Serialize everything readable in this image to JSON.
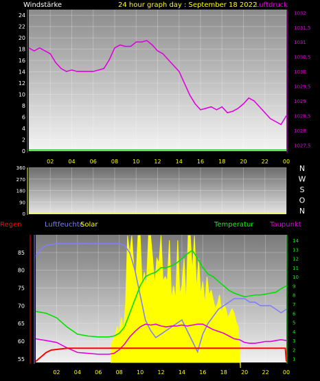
{
  "header": {
    "left_label": "Windstärke",
    "title": "24 hour graph day : September 18 2022",
    "right_label": "Luftdruck"
  },
  "bottom_labels": {
    "regen": "Regen",
    "luftfeuchte": "Luftfeuchte",
    "solar": "Solar",
    "temperatur": "Temperatur",
    "taupunkt": "Taupunkt"
  },
  "compass": [
    "N",
    "W",
    "S",
    "O",
    "N"
  ],
  "colors": {
    "pressure": "#e000e0",
    "wind": "#00c000",
    "humidity": "#7f7fff",
    "solar": "#ffff00",
    "temperature": "#00e000",
    "dewpoint": "#e000e0",
    "rain": "#ff0000",
    "left_axis_text": "#ffffff",
    "temp_axis_text": "#00ff00"
  },
  "chart_data": [
    {
      "type": "line",
      "title": "24 hour graph day : September 18 2022",
      "x_tick_labels": [
        "02",
        "04",
        "06",
        "08",
        "10",
        "12",
        "14",
        "16",
        "18",
        "20",
        "22",
        "00"
      ],
      "left_axis": {
        "label": "Windstärke",
        "ticks": [
          "0",
          "2",
          "4",
          "6",
          "8",
          "10",
          "12",
          "14",
          "16",
          "18",
          "20",
          "22",
          "24"
        ],
        "ylim": [
          0,
          25
        ]
      },
      "right_axis": {
        "label": "Luftdruck",
        "ticks": [
          "1027,5",
          "1028",
          "1028,5",
          "1029",
          "1029,5",
          "1030",
          "1030,5",
          "1031",
          "1031,5",
          "1032"
        ],
        "ylim": [
          1027.3,
          1032.1
        ]
      },
      "series": [
        {
          "name": "Luftdruck",
          "axis": "right",
          "x": [
            0,
            0.5,
            1,
            1.5,
            2,
            2.5,
            3,
            3.5,
            4,
            4.5,
            5,
            5.5,
            6,
            6.5,
            7,
            7.5,
            8,
            8.5,
            9,
            9.5,
            10,
            10.5,
            11,
            11.5,
            12,
            12.5,
            13,
            13.5,
            14,
            14.5,
            15,
            15.5,
            16,
            16.5,
            17,
            17.5,
            18,
            18.5,
            19,
            19.5,
            20,
            20.5,
            21,
            21.5,
            22,
            22.5,
            23,
            23.5,
            24
          ],
          "y": [
            1030.8,
            1030.7,
            1030.8,
            1030.7,
            1030.6,
            1030.3,
            1030.1,
            1030.0,
            1030.05,
            1030.0,
            1030.0,
            1030.0,
            1030.0,
            1030.05,
            1030.1,
            1030.4,
            1030.8,
            1030.9,
            1030.85,
            1030.85,
            1031.0,
            1031.0,
            1031.05,
            1030.9,
            1030.7,
            1030.6,
            1030.4,
            1030.2,
            1030.0,
            1029.6,
            1029.2,
            1028.9,
            1028.7,
            1028.75,
            1028.8,
            1028.7,
            1028.8,
            1028.6,
            1028.65,
            1028.75,
            1028.9,
            1029.1,
            1029.0,
            1028.8,
            1028.6,
            1028.4,
            1028.3,
            1028.2,
            1028.5
          ]
        },
        {
          "name": "Windstärke",
          "axis": "left",
          "x": [
            0,
            24
          ],
          "y": [
            0.2,
            0.2
          ]
        }
      ]
    },
    {
      "type": "line",
      "left_axis": {
        "ticks": [
          "0",
          "90",
          "180",
          "270",
          "360"
        ],
        "ylim": [
          0,
          360
        ]
      },
      "right_axis_labels": [
        "N",
        "W",
        "S",
        "O",
        "N"
      ],
      "series": []
    },
    {
      "type": "area",
      "x_tick_labels": [
        "02",
        "04",
        "06",
        "08",
        "10",
        "12",
        "14",
        "16",
        "18",
        "20",
        "22",
        "00"
      ],
      "legend": [
        "Regen",
        "Luftfeuchte",
        "Solar",
        "Temperatur",
        "Taupunkt"
      ],
      "left_axis": {
        "ticks": [
          "55",
          "60",
          "65",
          "70",
          "75",
          "80",
          "85"
        ],
        "ylim": [
          54,
          90
        ]
      },
      "right_axis": {
        "ticks": [
          "1",
          "2",
          "3",
          "4",
          "5",
          "6",
          "7",
          "8",
          "9",
          "10",
          "11",
          "12",
          "13",
          "14"
        ],
        "ylim": [
          0.6,
          14.6
        ]
      },
      "series": [
        {
          "name": "Luftfeuchte",
          "axis": "left",
          "x": [
            0,
            0.5,
            1,
            2,
            3,
            4,
            5,
            6,
            7,
            7.5,
            8,
            8.5,
            9,
            9.5,
            10,
            10.5,
            11,
            11.5,
            12,
            12.5,
            13,
            13.5,
            14,
            14.5,
            15,
            15.5,
            16,
            16.5,
            17,
            17.5,
            18,
            18.5,
            19,
            19.5,
            20,
            20.5,
            21,
            21.5,
            22,
            22.5,
            23,
            23.5,
            24
          ],
          "y": [
            84,
            86,
            87,
            87.5,
            87.5,
            87.5,
            87.5,
            87.5,
            87.5,
            87.5,
            87.5,
            87,
            85,
            80,
            73,
            66,
            63,
            61,
            62,
            63,
            64,
            65,
            66,
            63,
            60,
            57,
            62,
            65,
            67,
            69,
            70,
            71,
            72,
            72,
            72,
            71,
            71,
            70,
            70,
            70,
            69,
            68,
            69
          ]
        },
        {
          "name": "Temperatur",
          "axis": "right",
          "x": [
            0,
            0.5,
            1,
            2,
            3,
            4,
            5,
            6,
            7,
            7.5,
            8,
            8.5,
            9,
            9.5,
            10,
            10.5,
            11,
            11.5,
            12,
            12.5,
            13,
            13.5,
            14,
            14.5,
            15,
            15.5,
            16,
            16.5,
            17,
            17.5,
            18,
            18.5,
            19,
            19.5,
            20,
            20.5,
            21,
            21.5,
            22,
            22.5,
            23,
            23.5,
            24
          ],
          "y": [
            6.2,
            6.1,
            6.0,
            5.5,
            4.5,
            3.7,
            3.5,
            3.4,
            3.4,
            3.5,
            3.8,
            4.5,
            6,
            7.5,
            9,
            10,
            10.3,
            10.5,
            11,
            11,
            11.2,
            11.5,
            12,
            12.5,
            12.9,
            12,
            11,
            10.3,
            10,
            9.5,
            9,
            8.5,
            8.2,
            8,
            7.8,
            7.9,
            8,
            8,
            8.1,
            8.2,
            8.3,
            8.7,
            9
          ]
        },
        {
          "name": "Taupunkt",
          "axis": "right",
          "x": [
            0,
            0.5,
            1,
            2,
            3,
            4,
            5,
            6,
            7,
            7.5,
            8,
            8.5,
            9,
            9.5,
            10,
            10.5,
            11,
            11.5,
            12,
            12.5,
            13,
            13.5,
            14,
            14.5,
            15,
            15.5,
            16,
            16.5,
            17,
            17.5,
            18,
            18.5,
            19,
            19.5,
            20,
            20.5,
            21,
            21.5,
            22,
            22.5,
            23,
            23.5,
            24
          ],
          "y": [
            3.2,
            3.1,
            3.0,
            2.8,
            2.2,
            1.7,
            1.6,
            1.5,
            1.5,
            1.6,
            2.0,
            2.6,
            3.4,
            4.0,
            4.5,
            4.8,
            4.7,
            4.8,
            4.6,
            4.5,
            4.6,
            4.6,
            4.7,
            4.6,
            4.7,
            4.8,
            4.8,
            4.5,
            4.2,
            4.0,
            3.8,
            3.5,
            3.2,
            3.1,
            2.8,
            2.7,
            2.7,
            2.8,
            2.9,
            2.9,
            3.0,
            3.1,
            3.0
          ]
        },
        {
          "name": "Regen",
          "axis": "left",
          "x": [
            0,
            1,
            1.5,
            3,
            4,
            5,
            7,
            9,
            11,
            13,
            15,
            17,
            19,
            21,
            23,
            23.9,
            24
          ],
          "y": [
            54.3,
            56.8,
            57.5,
            58,
            58,
            58,
            58,
            58,
            58,
            58,
            58,
            58,
            58,
            58,
            58,
            58,
            54.3
          ]
        },
        {
          "name": "Solar",
          "axis": "right",
          "x": [
            7.2,
            7.4,
            7.6,
            7.8,
            8,
            8.2,
            8.4,
            8.6,
            8.8,
            9,
            9.2,
            9.4,
            9.6,
            9.8,
            10,
            10.2,
            10.4,
            10.6,
            10.8,
            11,
            11.2,
            11.4,
            11.6,
            11.8,
            12,
            12.2,
            12.4,
            12.6,
            12.8,
            13,
            13.2,
            13.4,
            13.6,
            13.8,
            14,
            14.2,
            14.4,
            14.6,
            14.8,
            15,
            15.2,
            15.4,
            15.6,
            15.8,
            16,
            16.2,
            16.4,
            16.6,
            16.8,
            17,
            17.2,
            17.4,
            17.6,
            17.8,
            18,
            18.2,
            18.4,
            18.6,
            18.8,
            19,
            19.2,
            19.4,
            19.6
          ],
          "y": [
            2.5,
            3.0,
            3.5,
            4.5,
            3.8,
            5.5,
            4.0,
            7.0,
            14.5,
            12.5,
            14.5,
            11.0,
            10.0,
            14.5,
            14.5,
            9.0,
            10.5,
            9.0,
            14.5,
            14.5,
            12.0,
            9.0,
            12.0,
            11.5,
            14.5,
            9.5,
            10.0,
            9.5,
            14.0,
            7.5,
            9.0,
            7.5,
            14.0,
            8.0,
            9.0,
            12.0,
            7.0,
            14.5,
            14.5,
            10.5,
            14.5,
            8.5,
            12.0,
            8.0,
            9.5,
            7.0,
            10.0,
            8.0,
            8.5,
            7.5,
            6.5,
            7.0,
            8.0,
            6.0,
            7.0,
            6.5,
            5.5,
            6.0,
            6.5,
            6.0,
            5.0,
            4.5,
            0
          ]
        }
      ]
    }
  ]
}
